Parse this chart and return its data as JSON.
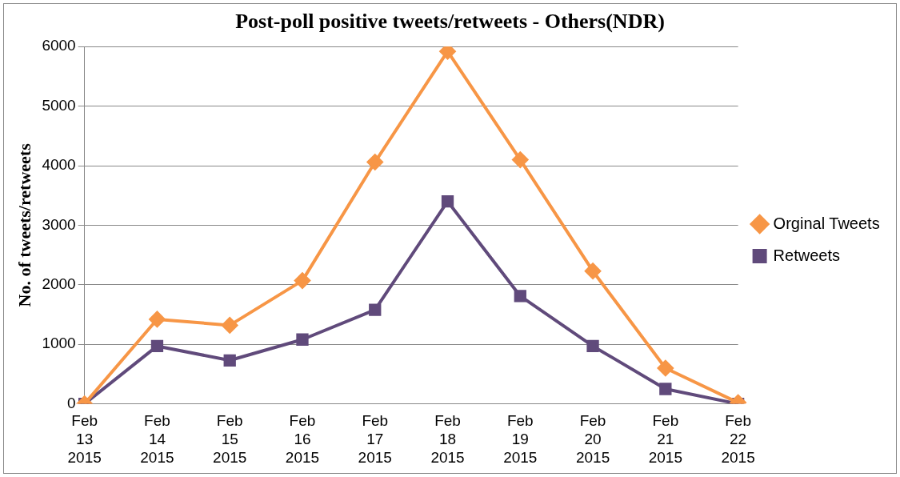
{
  "chart_data": {
    "type": "line",
    "title": "Post-poll positive tweets/retweets - Others(NDR)",
    "ylabel": "No. of tweets/retweets",
    "categories": [
      "Feb 13 2015",
      "Feb 14 2015",
      "Feb 15 2015",
      "Feb 16 2015",
      "Feb 17 2015",
      "Feb 18 2015",
      "Feb 19 2015",
      "Feb 20 2015",
      "Feb 21 2015",
      "Feb 22 2015"
    ],
    "series": [
      {
        "name": "Orginal Tweets",
        "color": "#f79646",
        "marker": "diamond",
        "values": [
          0,
          1420,
          1320,
          2070,
          4060,
          5920,
          4100,
          2230,
          600,
          20
        ]
      },
      {
        "name": "Retweets",
        "color": "#604a7b",
        "marker": "square",
        "values": [
          0,
          970,
          730,
          1080,
          1580,
          3400,
          1810,
          970,
          250,
          0
        ]
      }
    ],
    "ylim": [
      0,
      6000
    ],
    "yticks": [
      0,
      1000,
      2000,
      3000,
      4000,
      5000,
      6000
    ],
    "grid": "y",
    "legend": "right",
    "line_style": "solid"
  }
}
